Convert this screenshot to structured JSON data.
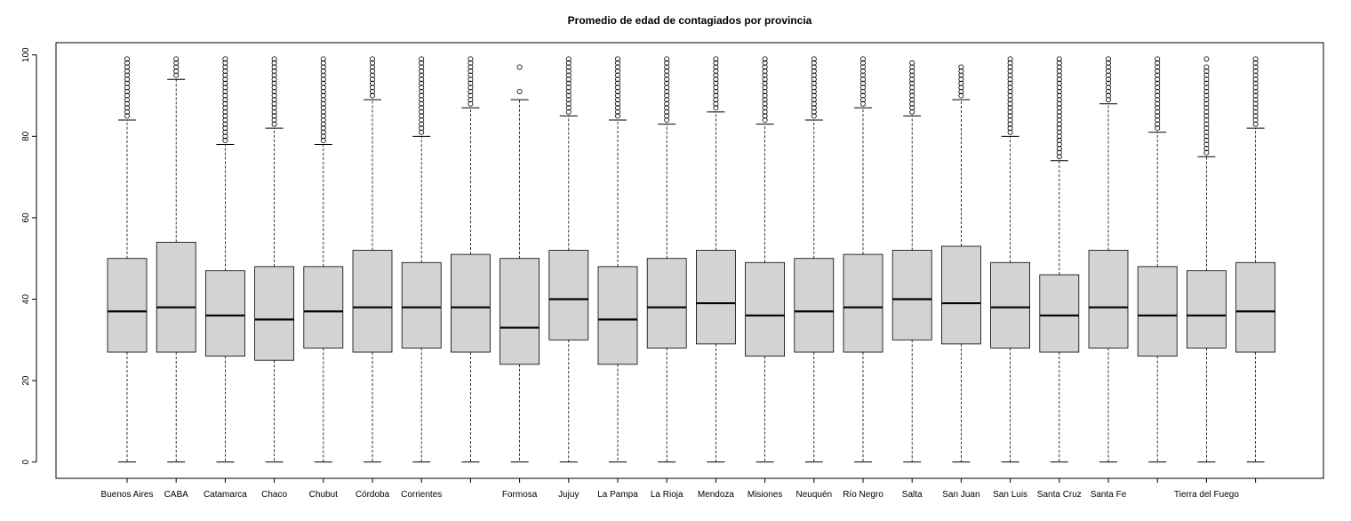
{
  "chart_data": {
    "type": "boxplot",
    "title": "Promedio de edad de contagiados por provincia",
    "xlabel": "",
    "ylabel": "",
    "ylim": [
      -4,
      103
    ],
    "yticks": [
      0,
      20,
      40,
      60,
      80,
      100
    ],
    "grid": false,
    "categories": [
      "Buenos Aires",
      "CABA",
      "Catamarca",
      "Chaco",
      "Chubut",
      "Córdoba",
      "Corrientes",
      "",
      "Formosa",
      "Jujuy",
      "La Pampa",
      "La Rioja",
      "Mendoza",
      "Misiones",
      "Neuquén",
      "Río Negro",
      "Salta",
      "San Juan",
      "San Luis",
      "Santa Cruz",
      "Santa Fe",
      "",
      "Tierra del Fuego",
      ""
    ],
    "boxes": [
      {
        "min": 0,
        "q1": 27,
        "median": 37,
        "q3": 50,
        "max": 84,
        "outliers_from": 85,
        "outliers_to": 99
      },
      {
        "min": 0,
        "q1": 27,
        "median": 38,
        "q3": 54,
        "max": 94,
        "outliers_from": 95,
        "outliers_to": 99
      },
      {
        "min": 0,
        "q1": 26,
        "median": 36,
        "q3": 47,
        "max": 78,
        "outliers_from": 79,
        "outliers_to": 99
      },
      {
        "min": 0,
        "q1": 25,
        "median": 35,
        "q3": 48,
        "max": 82,
        "outliers_from": 83,
        "outliers_to": 99
      },
      {
        "min": 0,
        "q1": 28,
        "median": 37,
        "q3": 48,
        "max": 78,
        "outliers_from": 79,
        "outliers_to": 99
      },
      {
        "min": 0,
        "q1": 27,
        "median": 38,
        "q3": 52,
        "max": 89,
        "outliers_from": 90,
        "outliers_to": 99
      },
      {
        "min": 0,
        "q1": 28,
        "median": 38,
        "q3": 49,
        "max": 80,
        "outliers_from": 81,
        "outliers_to": 99
      },
      {
        "min": 0,
        "q1": 27,
        "median": 38,
        "q3": 51,
        "max": 87,
        "outliers_from": 88,
        "outliers_to": 99
      },
      {
        "min": 0,
        "q1": 24,
        "median": 33,
        "q3": 50,
        "max": 89,
        "outliers": [
          91,
          97
        ]
      },
      {
        "min": 0,
        "q1": 30,
        "median": 40,
        "q3": 52,
        "max": 85,
        "outliers_from": 86,
        "outliers_to": 99
      },
      {
        "min": 0,
        "q1": 24,
        "median": 35,
        "q3": 48,
        "max": 84,
        "outliers_from": 85,
        "outliers_to": 99
      },
      {
        "min": 0,
        "q1": 28,
        "median": 38,
        "q3": 50,
        "max": 83,
        "outliers_from": 84,
        "outliers_to": 99
      },
      {
        "min": 0,
        "q1": 29,
        "median": 39,
        "q3": 52,
        "max": 86,
        "outliers_from": 87,
        "outliers_to": 99
      },
      {
        "min": 0,
        "q1": 26,
        "median": 36,
        "q3": 49,
        "max": 83,
        "outliers_from": 84,
        "outliers_to": 99
      },
      {
        "min": 0,
        "q1": 27,
        "median": 37,
        "q3": 50,
        "max": 84,
        "outliers_from": 85,
        "outliers_to": 99
      },
      {
        "min": 0,
        "q1": 27,
        "median": 38,
        "q3": 51,
        "max": 87,
        "outliers_from": 88,
        "outliers_to": 99
      },
      {
        "min": 0,
        "q1": 30,
        "median": 40,
        "q3": 52,
        "max": 85,
        "outliers_from": 86,
        "outliers_to": 98
      },
      {
        "min": 0,
        "q1": 29,
        "median": 39,
        "q3": 53,
        "max": 89,
        "outliers_from": 90,
        "outliers_to": 97
      },
      {
        "min": 0,
        "q1": 28,
        "median": 38,
        "q3": 49,
        "max": 80,
        "outliers_from": 81,
        "outliers_to": 99
      },
      {
        "min": 0,
        "q1": 27,
        "median": 36,
        "q3": 46,
        "max": 74,
        "outliers_from": 75,
        "outliers_to": 99
      },
      {
        "min": 0,
        "q1": 28,
        "median": 38,
        "q3": 52,
        "max": 88,
        "outliers_from": 89,
        "outliers_to": 99
      },
      {
        "min": 0,
        "q1": 26,
        "median": 36,
        "q3": 48,
        "max": 81,
        "outliers_from": 82,
        "outliers_to": 99
      },
      {
        "min": 0,
        "q1": 28,
        "median": 36,
        "q3": 47,
        "max": 75,
        "outliers_from": 76,
        "outliers_to": 97,
        "extra_outliers": [
          99
        ]
      },
      {
        "min": 0,
        "q1": 27,
        "median": 37,
        "q3": 49,
        "max": 82,
        "outliers_from": 83,
        "outliers_to": 99
      }
    ],
    "colors": {
      "box_fill": "#d3d3d3",
      "stroke": "#000000",
      "background": "#ffffff"
    }
  }
}
